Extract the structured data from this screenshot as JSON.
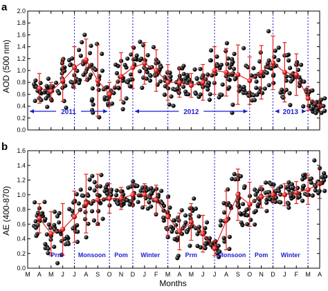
{
  "chart_data": [
    {
      "panel": "a",
      "type": "scatter",
      "ylabel": "AOD (500 nm)",
      "ylim": [
        0.0,
        2.0
      ],
      "yticks": [
        "0.0",
        "0.2",
        "0.4",
        "0.6",
        "0.8",
        "1.0",
        "1.2",
        "1.4",
        "1.6",
        "1.8",
        "2.0"
      ],
      "season_boundaries_month_index": [
        4,
        7,
        9,
        12,
        16,
        19,
        21,
        24
      ],
      "year_spans": [
        {
          "label": "2011",
          "from": 0,
          "to": 7
        },
        {
          "label": "2012",
          "from": 9,
          "to": 19
        },
        {
          "label": "2013",
          "from": 21,
          "to": 24
        }
      ],
      "monthly_mean": {
        "x": [
          1,
          2,
          3,
          4,
          5,
          6,
          7,
          8,
          9,
          10,
          11,
          12,
          13,
          14,
          15,
          16,
          17,
          18,
          19,
          20,
          21,
          22,
          23,
          24,
          25
        ],
        "y": [
          0.7,
          0.65,
          0.83,
          1.05,
          1.18,
          0.83,
          0.6,
          0.9,
          1.05,
          1.12,
          1.0,
          0.8,
          0.8,
          0.75,
          0.8,
          1.0,
          0.97,
          0.93,
          0.83,
          0.97,
          1.13,
          0.97,
          0.93,
          0.53,
          0.4
        ],
        "err": [
          0.25,
          0.15,
          0.35,
          0.35,
          0.35,
          0.6,
          0.2,
          0.4,
          0.35,
          0.35,
          0.35,
          0.3,
          0.25,
          0.2,
          0.3,
          0.4,
          0.4,
          0.5,
          0.4,
          0.45,
          0.45,
          0.5,
          0.35,
          0.2,
          0.1
        ]
      }
    },
    {
      "panel": "b",
      "type": "scatter",
      "ylabel": "AE (400-870)",
      "ylim": [
        0.0,
        1.6
      ],
      "yticks": [
        "0.0",
        "0.2",
        "0.4",
        "0.6",
        "0.8",
        "1.0",
        "1.2",
        "1.4",
        "1.6"
      ],
      "xlabel": "Months",
      "categories": [
        "M",
        "A",
        "M",
        "J",
        "J",
        "A",
        "S",
        "O",
        "N",
        "D",
        "J",
        "F",
        "M",
        "A",
        "M",
        "J",
        "J",
        "A",
        "S",
        "O",
        "N",
        "D",
        "J",
        "F",
        "M",
        "A"
      ],
      "season_boundaries_month_index": [
        4,
        7,
        9,
        12,
        16,
        19,
        21,
        24
      ],
      "seasons": [
        {
          "label": "Prm",
          "from": 1,
          "to": 4
        },
        {
          "label": "Monsoon",
          "from": 4,
          "to": 7
        },
        {
          "label": "Pom",
          "from": 7,
          "to": 9
        },
        {
          "label": "Winter",
          "from": 9,
          "to": 12
        },
        {
          "label": "Prm",
          "from": 12,
          "to": 16
        },
        {
          "label": "Monsoon",
          "from": 16,
          "to": 19
        },
        {
          "label": "Pom",
          "from": 19,
          "to": 21
        },
        {
          "label": "Winter",
          "from": 21,
          "to": 24
        }
      ],
      "monthly_mean": {
        "x": [
          1,
          2,
          3,
          4,
          5,
          6,
          7,
          8,
          9,
          10,
          11,
          12,
          13,
          14,
          15,
          16,
          17,
          18,
          19,
          20,
          21,
          22,
          23,
          24,
          25
        ],
        "y": [
          0.68,
          0.47,
          0.53,
          0.7,
          0.88,
          0.93,
          0.95,
          0.95,
          1.0,
          1.0,
          0.93,
          0.7,
          0.5,
          0.63,
          0.47,
          0.27,
          0.65,
          1.0,
          0.87,
          0.97,
          1.0,
          1.0,
          1.03,
          1.07,
          1.15
        ],
        "err": [
          0.2,
          0.3,
          0.35,
          0.35,
          0.4,
          0.35,
          0.2,
          0.15,
          0.15,
          0.15,
          0.2,
          0.25,
          0.25,
          0.25,
          0.25,
          0.1,
          0.4,
          0.35,
          0.3,
          0.15,
          0.1,
          0.15,
          0.15,
          0.2,
          0.2
        ]
      }
    }
  ]
}
